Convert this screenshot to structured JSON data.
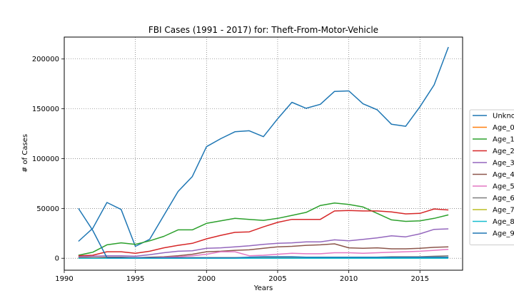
{
  "chart_data": {
    "type": "line",
    "title": "FBI Cases (1991 - 2017) for: Theft-From-Motor-Vehicle",
    "xlabel": "Years",
    "ylabel": "# of Cases",
    "xlim": [
      1990,
      2018
    ],
    "ylim": [
      -12000,
      222000
    ],
    "xticks": [
      1990,
      1995,
      2000,
      2005,
      2010,
      2015
    ],
    "yticks": [
      0,
      50000,
      100000,
      150000,
      200000
    ],
    "grid": true,
    "legend_position": "right (clipped)",
    "x": [
      1991,
      1992,
      1993,
      1994,
      1995,
      1996,
      1997,
      1998,
      1999,
      2000,
      2001,
      2002,
      2003,
      2004,
      2005,
      2006,
      2007,
      2008,
      2009,
      2010,
      2011,
      2012,
      2013,
      2014,
      2015,
      2016,
      2017
    ],
    "series": [
      {
        "name": "Unkno",
        "color": "#1f77b4",
        "values": [
          17000,
          30000,
          56000,
          49000,
          12000,
          19000,
          43000,
          67000,
          82000,
          112000,
          120000,
          127000,
          128000,
          122000,
          140000,
          156500,
          150500,
          154500,
          167500,
          168000,
          155000,
          149000,
          134500,
          132500,
          152000,
          174000,
          212000
        ]
      },
      {
        "name": "Age_0",
        "color": "#ff7f0e",
        "values": [
          500,
          500,
          500,
          500,
          500,
          500,
          500,
          500,
          500,
          500,
          500,
          500,
          500,
          500,
          500,
          500,
          500,
          500,
          500,
          500,
          500,
          500,
          500,
          500,
          500,
          1500,
          1000
        ]
      },
      {
        "name": "Age_1",
        "color": "#2ca02c",
        "values": [
          3000,
          6000,
          13500,
          15500,
          14000,
          17500,
          22000,
          28500,
          28500,
          35000,
          37500,
          40000,
          39000,
          38000,
          40000,
          43000,
          46000,
          53000,
          55500,
          54000,
          51500,
          45000,
          38500,
          37000,
          37500,
          40000,
          43500
        ]
      },
      {
        "name": "Age_2",
        "color": "#d62728",
        "values": [
          2500,
          3000,
          6500,
          6500,
          5000,
          7000,
          10500,
          13000,
          15000,
          19500,
          23000,
          26000,
          26500,
          31500,
          36000,
          39000,
          39000,
          39000,
          47500,
          48000,
          47500,
          47500,
          46500,
          44500,
          45000,
          49500,
          48500
        ]
      },
      {
        "name": "Age_3",
        "color": "#9467bd",
        "values": [
          1500,
          2000,
          2500,
          2500,
          2000,
          3500,
          5500,
          7000,
          7500,
          10000,
          10500,
          11500,
          12500,
          14000,
          15000,
          15500,
          16500,
          16500,
          18500,
          17500,
          19000,
          20500,
          22500,
          21500,
          24500,
          29000,
          29500
        ]
      },
      {
        "name": "Age_4",
        "color": "#8c564b",
        "values": [
          500,
          500,
          1000,
          1000,
          500,
          1000,
          1500,
          2500,
          4000,
          6500,
          7000,
          8000,
          8500,
          10000,
          11500,
          12000,
          13000,
          13500,
          14500,
          10500,
          10000,
          10500,
          9500,
          9500,
          10000,
          11000,
          11500
        ]
      },
      {
        "name": "Age_5",
        "color": "#e377c2",
        "values": [
          0,
          0,
          0,
          0,
          500,
          500,
          1000,
          1500,
          2500,
          4000,
          6500,
          6500,
          2500,
          3000,
          4000,
          5000,
          4500,
          4500,
          5500,
          5500,
          5000,
          5500,
          6000,
          6500,
          7000,
          8000,
          9000
        ]
      },
      {
        "name": "Age_6",
        "color": "#7f7f7f",
        "values": [
          0,
          0,
          0,
          0,
          0,
          0,
          0,
          0,
          500,
          500,
          500,
          500,
          500,
          500,
          1000,
          1000,
          1000,
          1000,
          1000,
          1000,
          1000,
          1000,
          1500,
          1500,
          1500,
          2000,
          2500
        ]
      },
      {
        "name": "Age_7",
        "color": "#bcbd22",
        "values": [
          0,
          0,
          0,
          0,
          0,
          0,
          0,
          0,
          0,
          0,
          0,
          0,
          0,
          0,
          0,
          0,
          0,
          0,
          0,
          0,
          0,
          0,
          0,
          500,
          500,
          500,
          500
        ]
      },
      {
        "name": "Age_8",
        "color": "#17becf",
        "values": [
          0,
          0,
          0,
          0,
          0,
          0,
          0,
          0,
          0,
          0,
          0,
          0,
          0,
          0,
          0,
          0,
          0,
          0,
          0,
          0,
          0,
          0,
          0,
          0,
          0,
          0,
          0
        ]
      },
      {
        "name": "Age_9",
        "color": "#1f77b4",
        "values": [
          50000,
          28000,
          500,
          500,
          500,
          500,
          500,
          500,
          500,
          500,
          500,
          500,
          1000,
          1500,
          1500,
          1500,
          1000,
          1000,
          1000,
          1000,
          1000,
          1000,
          1000,
          1000,
          1000,
          1000,
          1000
        ]
      }
    ]
  }
}
